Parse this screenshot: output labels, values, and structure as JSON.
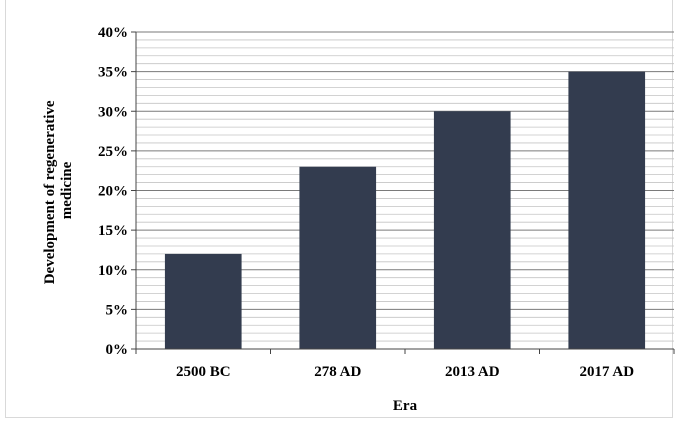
{
  "chart_data": {
    "type": "bar",
    "categories": [
      "2500 BC",
      "278 AD",
      "2013 AD",
      "2017 AD"
    ],
    "values": [
      12,
      23,
      30,
      35
    ],
    "value_format": "percent",
    "title": "",
    "xlabel": "Era",
    "ylabel_lines": [
      "Development of regenerative",
      "medicine"
    ],
    "ylim": [
      0,
      40
    ],
    "y_ticks": [
      "0%",
      "5%",
      "10%",
      "15%",
      "20%",
      "25%",
      "30%",
      "35%",
      "40%"
    ],
    "bar_color": "#333c4f",
    "grid": true,
    "minor_grid_step": 1,
    "legend": "none"
  }
}
